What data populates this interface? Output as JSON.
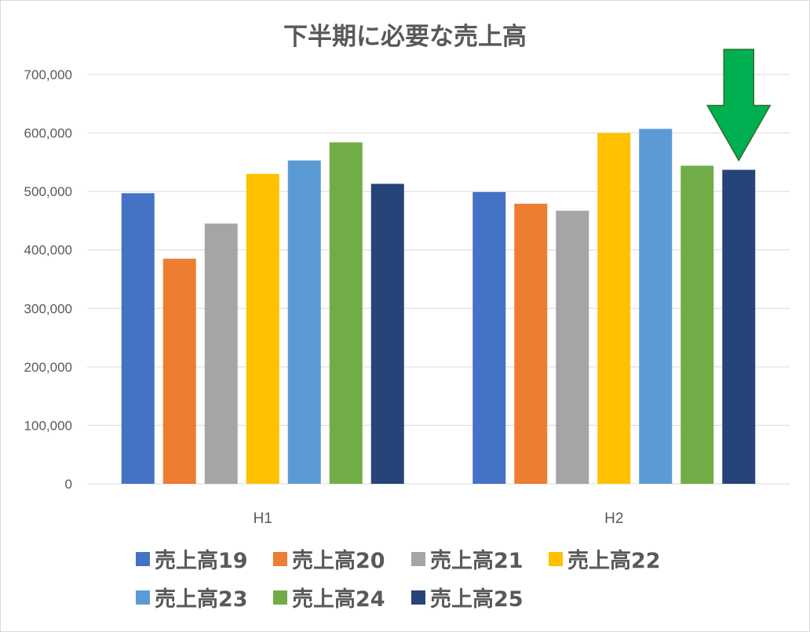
{
  "chart_data": {
    "type": "bar",
    "title": "下半期に必要な売上高",
    "xlabel": "",
    "ylabel": "",
    "categories": [
      "H1",
      "H2"
    ],
    "ylim": [
      0,
      700000
    ],
    "yticks": [
      0,
      100000,
      200000,
      300000,
      400000,
      500000,
      600000,
      700000
    ],
    "ytick_labels": [
      "0",
      "100,000",
      "200,000",
      "300,000",
      "400,000",
      "500,000",
      "600,000",
      "700,000"
    ],
    "grid": true,
    "legend_position": "bottom",
    "series": [
      {
        "name": "売上高19",
        "color": "#4472C4",
        "values": [
          497000,
          499000
        ]
      },
      {
        "name": "売上高20",
        "color": "#ED7D31",
        "values": [
          385000,
          479000
        ]
      },
      {
        "name": "売上高21",
        "color": "#A5A5A5",
        "values": [
          445000,
          467000
        ]
      },
      {
        "name": "売上高22",
        "color": "#FFC000",
        "values": [
          530000,
          600000
        ]
      },
      {
        "name": "売上高23",
        "color": "#5B9BD5",
        "values": [
          553000,
          607000
        ]
      },
      {
        "name": "売上高24",
        "color": "#70AD47",
        "values": [
          584000,
          544000
        ]
      },
      {
        "name": "売上高25",
        "color": "#264478",
        "values": [
          513000,
          537000
        ]
      }
    ],
    "annotation": {
      "shape": "down-arrow",
      "color": "#00B050",
      "points_to_series": "売上高25",
      "points_to_category": "H2"
    }
  }
}
